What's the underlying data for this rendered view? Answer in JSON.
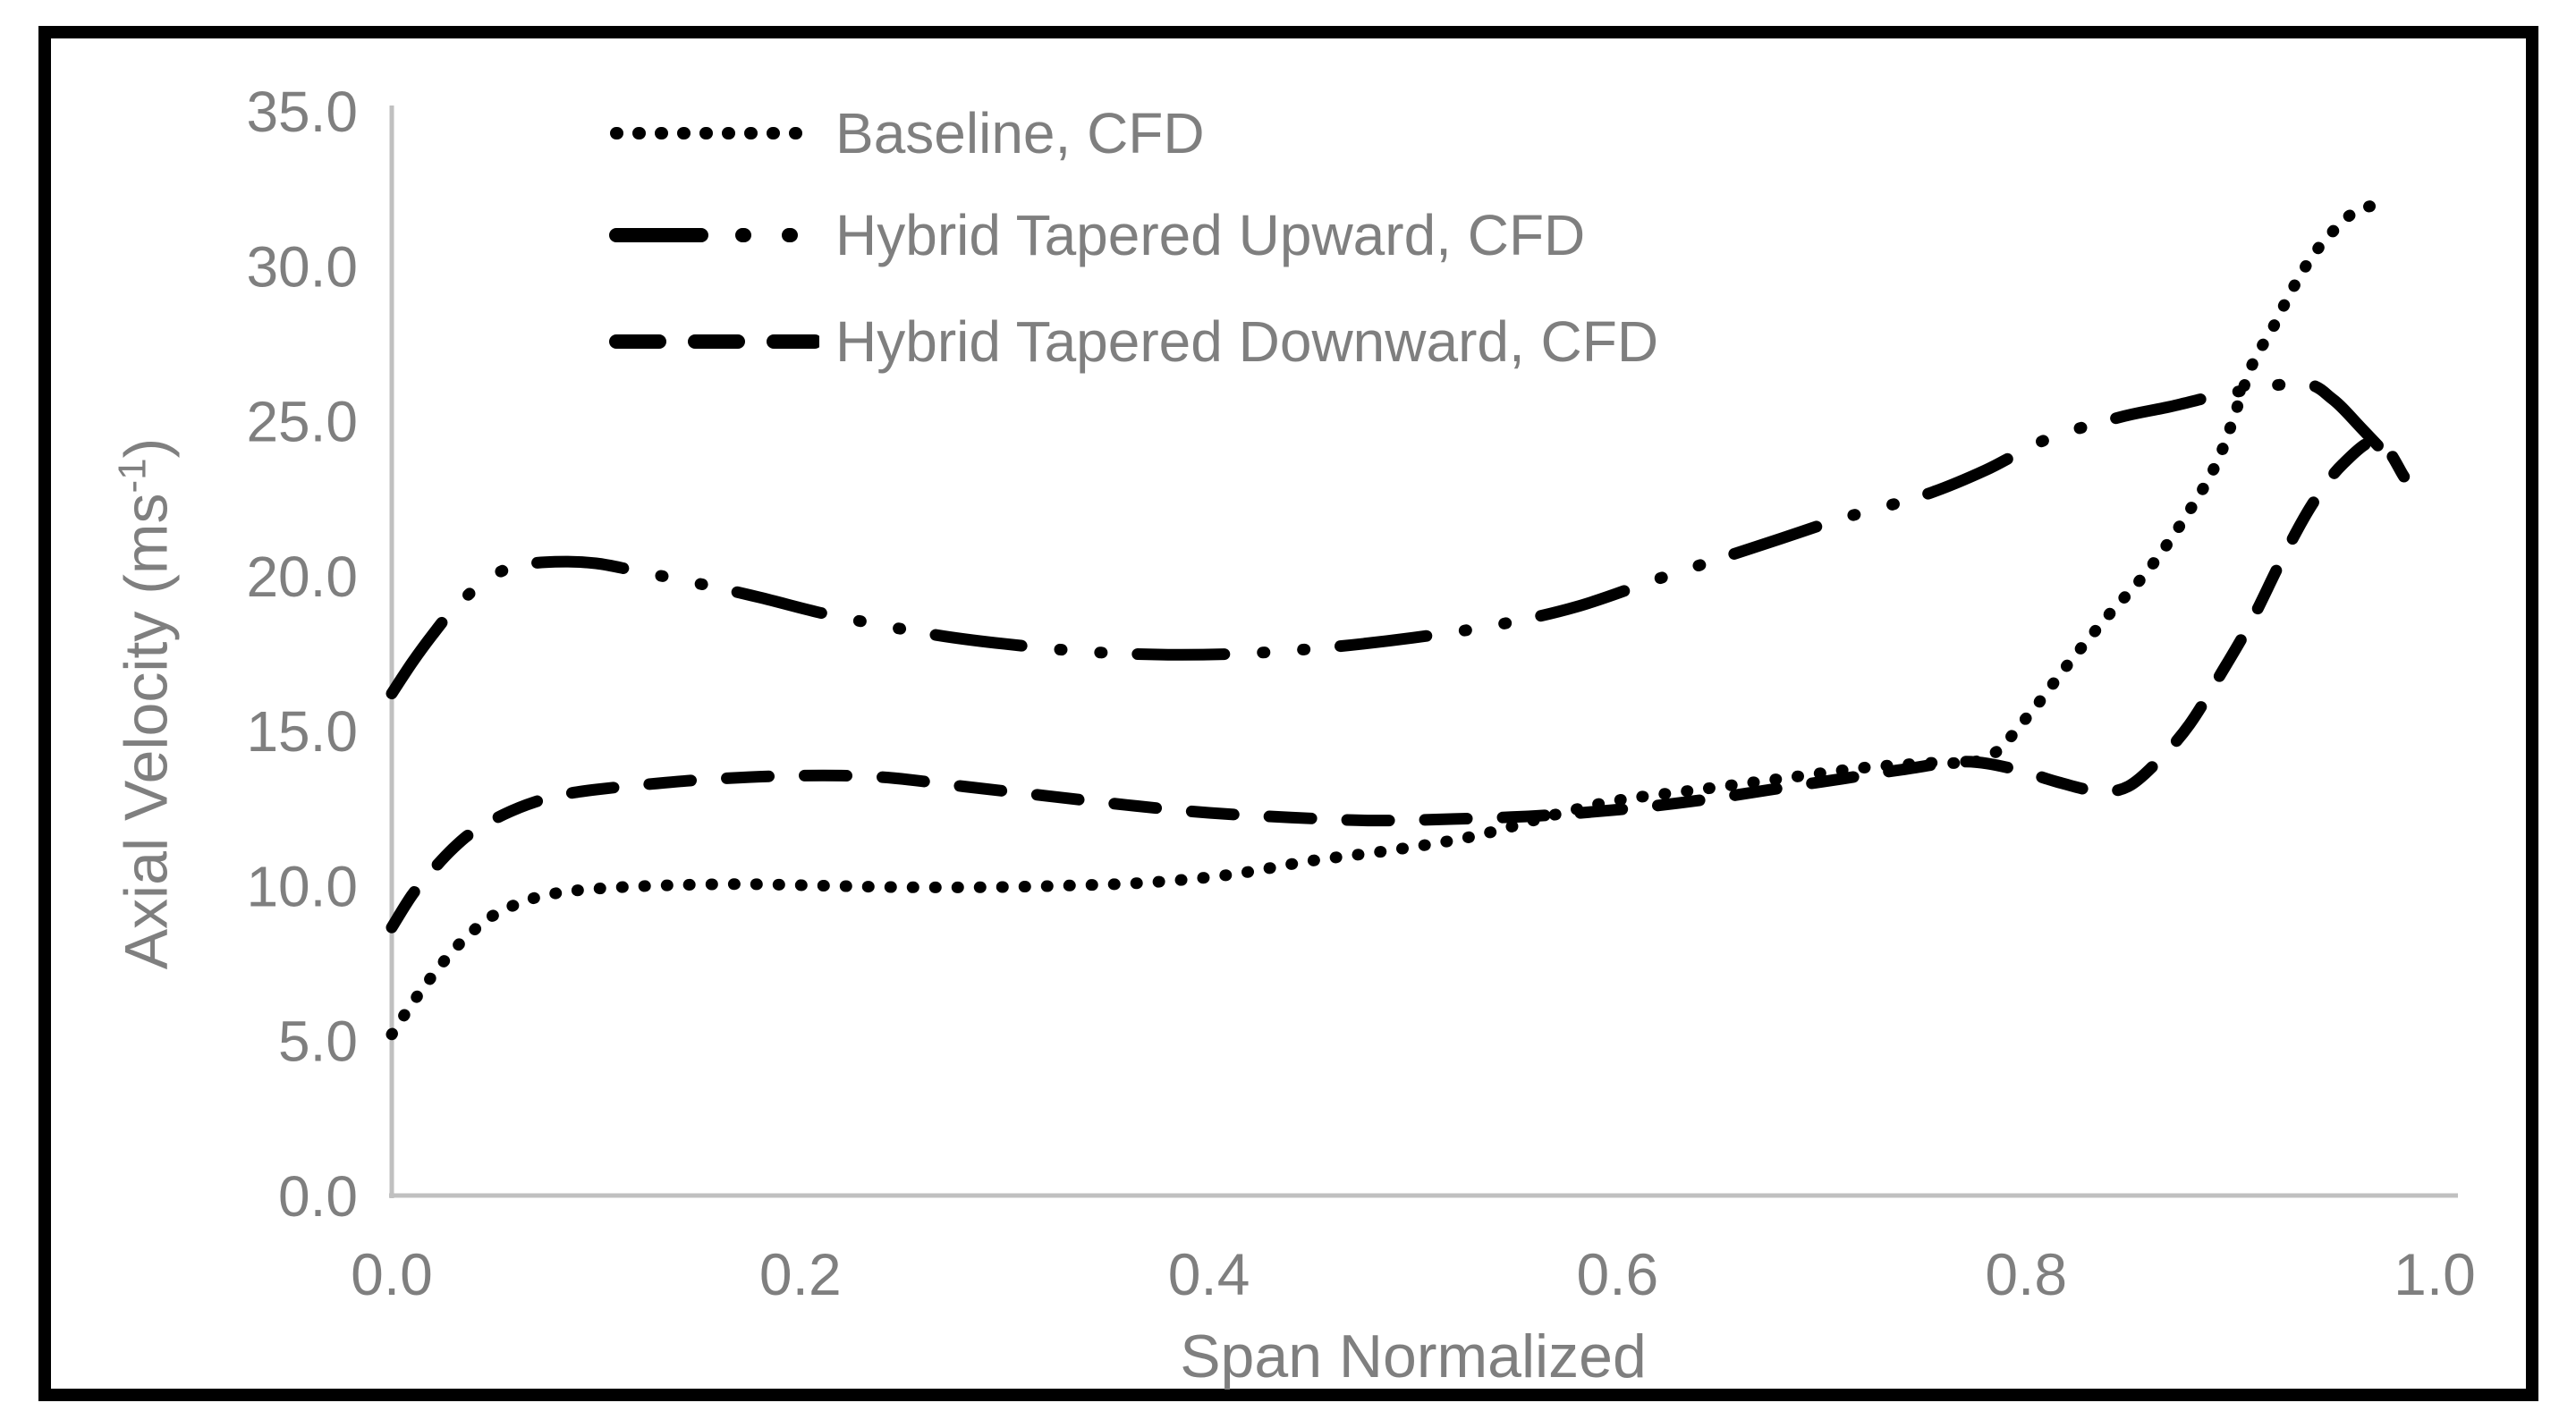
{
  "figure": {
    "background": "#ffffff",
    "border_color": "#000000"
  },
  "legend": {
    "text_color": "#7f7f7f",
    "items": [
      {
        "label": "Baseline, CFD",
        "style": "dotted"
      },
      {
        "label": "Hybrid Tapered Upward, CFD",
        "style": "dash-dot-dot"
      },
      {
        "label": "Hybrid Tapered Downward, CFD",
        "style": "dashed"
      }
    ]
  },
  "axes": {
    "y_title_main": "Axial Velocity (ms",
    "y_title_sup": "-1",
    "y_title_close": ")",
    "x_title": "Span Normalized"
  },
  "chart_data": {
    "type": "line",
    "title": "",
    "xlabel": "Span Normalized",
    "ylabel": "Axial Velocity (ms⁻¹)",
    "xlim": [
      0.0,
      1.0
    ],
    "ylim": [
      0.0,
      35.0
    ],
    "grid": false,
    "legend_position": "top-left-inside",
    "axis_color": "#c0c0c0",
    "tick_text_color": "#7f7f7f",
    "line_color": "#000000",
    "x_ticks": [
      0.0,
      0.2,
      0.4,
      0.6,
      0.8,
      1.0
    ],
    "x_tick_labels": [
      "0.0",
      "0.2",
      "0.4",
      "0.6",
      "0.8",
      "1.0"
    ],
    "y_ticks": [
      0,
      5,
      10,
      15,
      20,
      25,
      30,
      35
    ],
    "y_tick_labels": [
      "0.0",
      "5.0",
      "10.0",
      "15.0",
      "20.0",
      "25.0",
      "30.0",
      "35.0"
    ],
    "series": [
      {
        "name": "Baseline, CFD",
        "line_style": "dotted",
        "color": "#000000",
        "points": [
          [
            0.0,
            5.2
          ],
          [
            0.01,
            6.2
          ],
          [
            0.02,
            7.1
          ],
          [
            0.03,
            7.9
          ],
          [
            0.04,
            8.55
          ],
          [
            0.05,
            9.05
          ],
          [
            0.065,
            9.5
          ],
          [
            0.08,
            9.75
          ],
          [
            0.1,
            9.9
          ],
          [
            0.13,
            10.0
          ],
          [
            0.17,
            10.05
          ],
          [
            0.21,
            10.0
          ],
          [
            0.25,
            9.95
          ],
          [
            0.29,
            9.95
          ],
          [
            0.33,
            10.0
          ],
          [
            0.37,
            10.1
          ],
          [
            0.41,
            10.35
          ],
          [
            0.45,
            10.8
          ],
          [
            0.49,
            11.15
          ],
          [
            0.53,
            11.6
          ],
          [
            0.57,
            12.3
          ],
          [
            0.6,
            12.75
          ],
          [
            0.64,
            13.1
          ],
          [
            0.68,
            13.45
          ],
          [
            0.72,
            13.8
          ],
          [
            0.75,
            13.95
          ],
          [
            0.78,
            14.1
          ],
          [
            0.8,
            15.4
          ],
          [
            0.82,
            17.1
          ],
          [
            0.84,
            18.7
          ],
          [
            0.86,
            20.2
          ],
          [
            0.88,
            22.1
          ],
          [
            0.895,
            23.9
          ],
          [
            0.91,
            26.7
          ],
          [
            0.92,
            27.9
          ],
          [
            0.93,
            29.2
          ],
          [
            0.94,
            30.3
          ],
          [
            0.95,
            31.1
          ],
          [
            0.96,
            31.7
          ],
          [
            0.97,
            31.95
          ],
          [
            0.978,
            32.0
          ]
        ]
      },
      {
        "name": "Hybrid Tapered Upward, CFD",
        "line_style": "dash-dot-dot",
        "color": "#000000",
        "points": [
          [
            0.0,
            16.2
          ],
          [
            0.01,
            17.2
          ],
          [
            0.02,
            18.1
          ],
          [
            0.03,
            18.9
          ],
          [
            0.045,
            19.8
          ],
          [
            0.06,
            20.3
          ],
          [
            0.08,
            20.45
          ],
          [
            0.1,
            20.4
          ],
          [
            0.12,
            20.15
          ],
          [
            0.15,
            19.75
          ],
          [
            0.18,
            19.3
          ],
          [
            0.21,
            18.8
          ],
          [
            0.24,
            18.4
          ],
          [
            0.27,
            18.05
          ],
          [
            0.3,
            17.8
          ],
          [
            0.34,
            17.55
          ],
          [
            0.38,
            17.45
          ],
          [
            0.42,
            17.5
          ],
          [
            0.46,
            17.7
          ],
          [
            0.5,
            18.0
          ],
          [
            0.54,
            18.4
          ],
          [
            0.58,
            19.0
          ],
          [
            0.62,
            19.9
          ],
          [
            0.65,
            20.55
          ],
          [
            0.68,
            21.2
          ],
          [
            0.71,
            21.85
          ],
          [
            0.75,
            22.6
          ],
          [
            0.78,
            23.4
          ],
          [
            0.81,
            24.4
          ],
          [
            0.845,
            25.1
          ],
          [
            0.87,
            25.45
          ],
          [
            0.9,
            25.9
          ],
          [
            0.935,
            26.2
          ],
          [
            0.95,
            25.7
          ],
          [
            0.965,
            24.7
          ],
          [
            0.985,
            23.3
          ]
        ]
      },
      {
        "name": "Hybrid Tapered Downward, CFD",
        "line_style": "dashed",
        "color": "#000000",
        "points": [
          [
            0.0,
            8.65
          ],
          [
            0.01,
            9.7
          ],
          [
            0.02,
            10.5
          ],
          [
            0.03,
            11.2
          ],
          [
            0.04,
            11.75
          ],
          [
            0.055,
            12.3
          ],
          [
            0.07,
            12.7
          ],
          [
            0.085,
            12.95
          ],
          [
            0.1,
            13.1
          ],
          [
            0.13,
            13.3
          ],
          [
            0.16,
            13.45
          ],
          [
            0.2,
            13.55
          ],
          [
            0.24,
            13.5
          ],
          [
            0.28,
            13.2
          ],
          [
            0.32,
            12.9
          ],
          [
            0.36,
            12.6
          ],
          [
            0.4,
            12.35
          ],
          [
            0.44,
            12.2
          ],
          [
            0.48,
            12.1
          ],
          [
            0.52,
            12.15
          ],
          [
            0.56,
            12.25
          ],
          [
            0.6,
            12.45
          ],
          [
            0.64,
            12.75
          ],
          [
            0.68,
            13.15
          ],
          [
            0.71,
            13.45
          ],
          [
            0.74,
            13.75
          ],
          [
            0.77,
            14.0
          ],
          [
            0.795,
            13.75
          ],
          [
            0.815,
            13.35
          ],
          [
            0.835,
            13.05
          ],
          [
            0.85,
            13.2
          ],
          [
            0.865,
            14.05
          ],
          [
            0.88,
            15.2
          ],
          [
            0.895,
            16.8
          ],
          [
            0.91,
            18.5
          ],
          [
            0.925,
            20.5
          ],
          [
            0.94,
            22.3
          ],
          [
            0.955,
            23.6
          ],
          [
            0.972,
            24.35
          ],
          [
            0.985,
            23.2
          ]
        ]
      }
    ]
  }
}
